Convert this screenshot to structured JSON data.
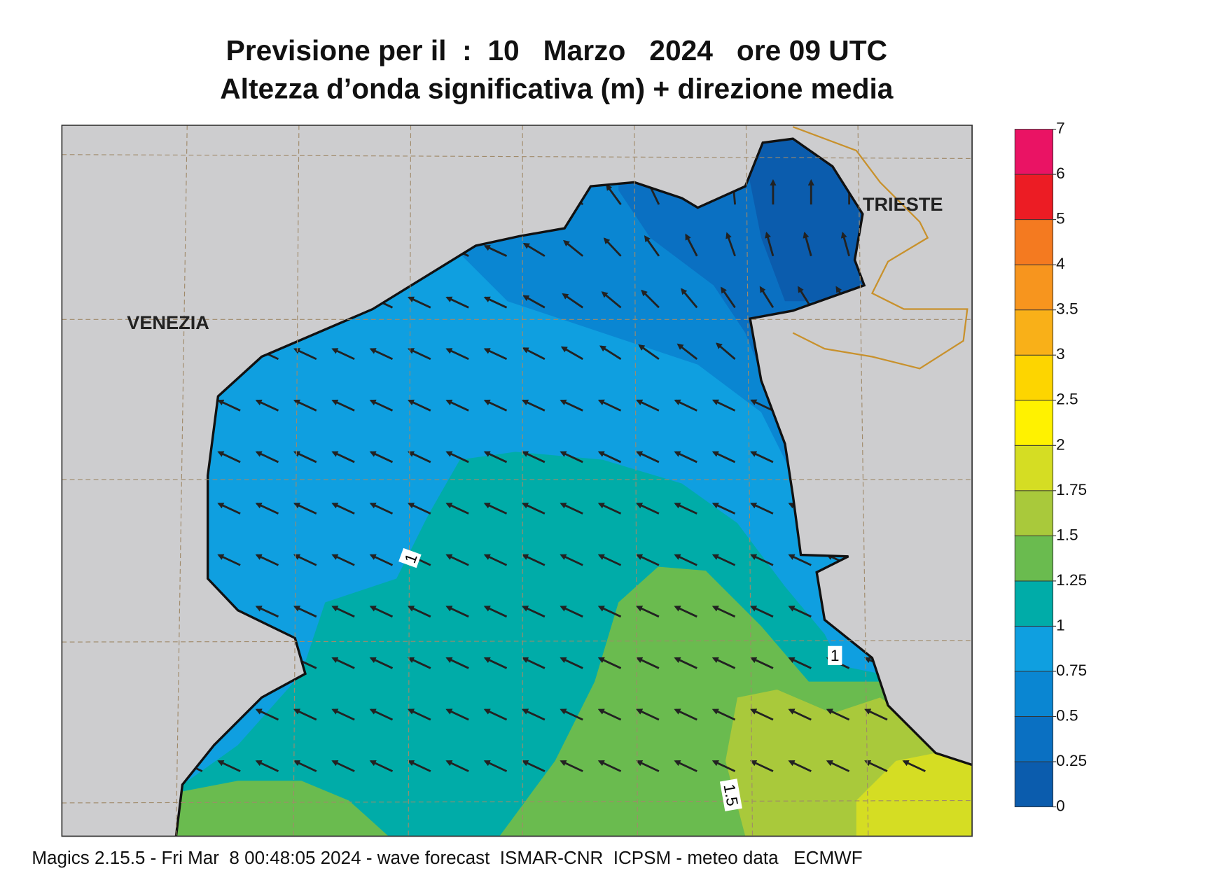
{
  "header": {
    "title": "Previsione per il  :  10   Marzo   2024   ore 09 UTC",
    "subtitle": "Altezza d’onda significativa (m) + direzione media"
  },
  "places": [
    "VENEZIA",
    "TRIESTE"
  ],
  "contour_labels": [
    "1",
    "1",
    "1.5"
  ],
  "colorbar": {
    "levels": [
      0,
      0.25,
      0.5,
      0.75,
      1,
      1.25,
      1.5,
      1.75,
      2,
      2.5,
      3,
      3.5,
      4,
      5,
      6,
      7
    ],
    "colors": [
      "#0b5cad",
      "#0a70c2",
      "#0a86d2",
      "#0f9fe0",
      "#00aca8",
      "#6abb4f",
      "#a9c93b",
      "#d5dd23",
      "#fff200",
      "#fdd500",
      "#f9b018",
      "#f7951e",
      "#f47a20",
      "#ec1c24",
      "#ea1364"
    ]
  },
  "footer": "Magics 2.15.5 - Fri Mar  8 00:48:05 2024 - wave forecast  ISMAR-CNR  ICPSM - meteo data   ECMWF"
}
